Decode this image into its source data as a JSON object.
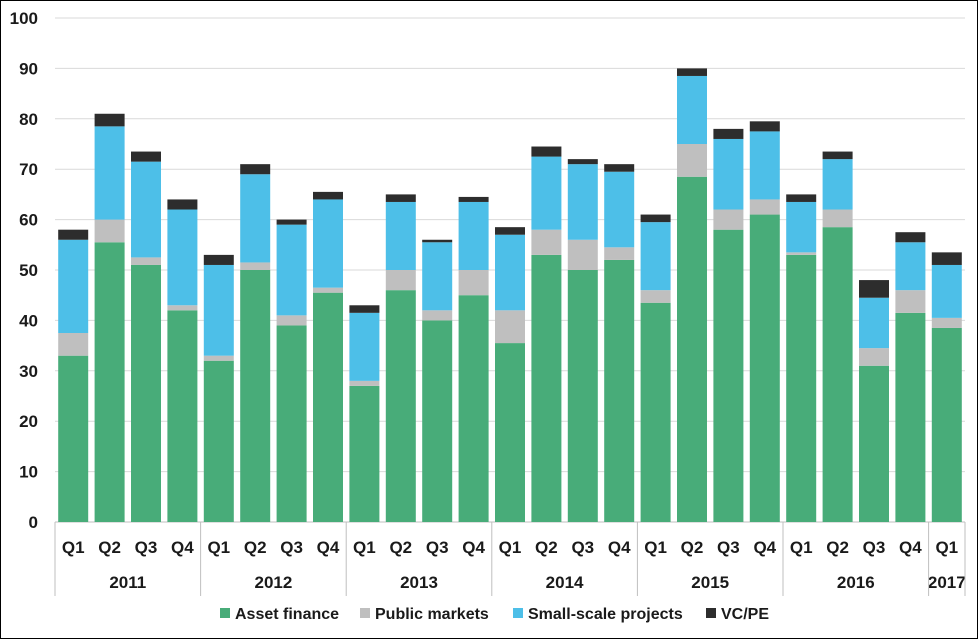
{
  "chart_data": {
    "type": "bar",
    "stacked": true,
    "title": "",
    "xlabel": "",
    "ylabel": "",
    "ylim": [
      0,
      100
    ],
    "yticks": [
      0,
      10,
      20,
      30,
      40,
      50,
      60,
      70,
      80,
      90,
      100
    ],
    "grid": true,
    "legend_position": "bottom",
    "categories": [
      "Q1",
      "Q2",
      "Q3",
      "Q4",
      "Q1",
      "Q2",
      "Q3",
      "Q4",
      "Q1",
      "Q2",
      "Q3",
      "Q4",
      "Q1",
      "Q2",
      "Q3",
      "Q4",
      "Q1",
      "Q2",
      "Q3",
      "Q4",
      "Q1",
      "Q2",
      "Q3",
      "Q4",
      "Q1"
    ],
    "groups": [
      {
        "label": "2011",
        "count": 4
      },
      {
        "label": "2012",
        "count": 4
      },
      {
        "label": "2013",
        "count": 4
      },
      {
        "label": "2014",
        "count": 4
      },
      {
        "label": "2015",
        "count": 4
      },
      {
        "label": "2016",
        "count": 4
      },
      {
        "label": "2017",
        "count": 1
      }
    ],
    "series": [
      {
        "name": "Asset finance",
        "color": "#48ac79",
        "values": [
          33,
          55.5,
          51,
          42,
          32,
          50,
          39,
          45.5,
          27,
          46,
          40,
          45,
          35.5,
          53,
          50,
          52,
          43.5,
          68.5,
          58,
          61,
          53,
          58.5,
          31,
          41.5,
          38.5
        ]
      },
      {
        "name": "Public markets",
        "color": "#bfbfbf",
        "values": [
          4.5,
          4.5,
          1.5,
          1,
          1,
          1.5,
          2,
          1,
          1,
          4,
          2,
          5,
          6.5,
          5,
          6,
          2.5,
          2.5,
          6.5,
          4,
          3,
          0.5,
          3.5,
          3.5,
          4.5,
          2
        ]
      },
      {
        "name": "Small-scale projects",
        "color": "#4dbfe8",
        "values": [
          18.5,
          18.5,
          19,
          19,
          18,
          17.5,
          18,
          17.5,
          13.5,
          13.5,
          13.5,
          13.5,
          15,
          14.5,
          15,
          15,
          13.5,
          13.5,
          14,
          13.5,
          10,
          10,
          10,
          9.5,
          10.5
        ]
      },
      {
        "name": "VC/PE",
        "color": "#2d2d2d",
        "values": [
          2,
          2.5,
          2,
          2,
          2,
          2,
          1,
          1.5,
          1.5,
          1.5,
          0.5,
          1,
          1.5,
          2,
          1,
          1.5,
          1.5,
          1.5,
          2,
          2,
          1.5,
          1.5,
          3.5,
          2,
          2.5
        ]
      }
    ]
  }
}
